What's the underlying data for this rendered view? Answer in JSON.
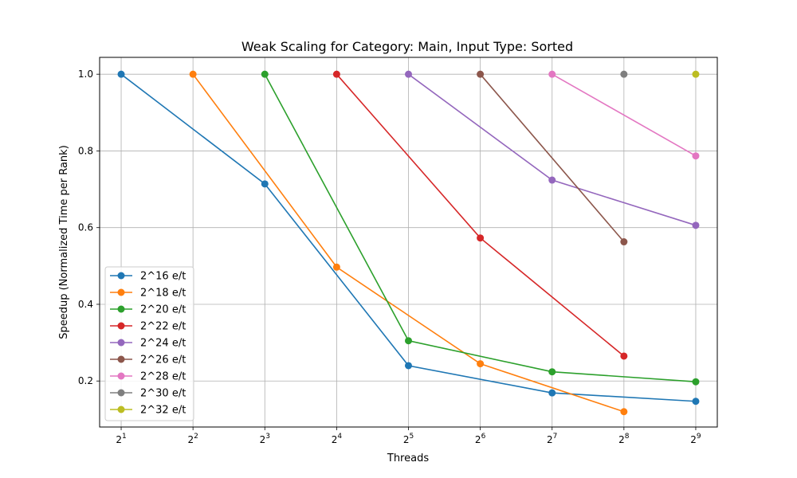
{
  "chart_data": {
    "type": "line",
    "title": "Weak Scaling for Category: Main, Input Type: Sorted",
    "xlabel": "Threads",
    "ylabel": "Speedup (Normalized Time per Rank)",
    "x_scale": "log2",
    "x_ticks": [
      {
        "base": "2",
        "exp": "1",
        "value": 2
      },
      {
        "base": "2",
        "exp": "2",
        "value": 4
      },
      {
        "base": "2",
        "exp": "3",
        "value": 8
      },
      {
        "base": "2",
        "exp": "4",
        "value": 16
      },
      {
        "base": "2",
        "exp": "5",
        "value": 32
      },
      {
        "base": "2",
        "exp": "6",
        "value": 64
      },
      {
        "base": "2",
        "exp": "7",
        "value": 128
      },
      {
        "base": "2",
        "exp": "8",
        "value": 256
      },
      {
        "base": "2",
        "exp": "9",
        "value": 512
      }
    ],
    "y_ticks": [
      "0.2",
      "0.4",
      "0.6",
      "0.8",
      "1.0"
    ],
    "ylim": [
      0.08,
      1.044
    ],
    "grid": true,
    "legend_position": "lower-left",
    "series": [
      {
        "name": "2^16 e/t",
        "color": "#1f77b4",
        "points": [
          [
            2,
            1.0
          ],
          [
            8,
            0.714
          ],
          [
            32,
            0.24
          ],
          [
            128,
            0.169
          ],
          [
            512,
            0.147
          ]
        ]
      },
      {
        "name": "2^18 e/t",
        "color": "#ff7f0e",
        "points": [
          [
            4,
            1.0
          ],
          [
            16,
            0.497
          ],
          [
            64,
            0.245
          ],
          [
            256,
            0.12
          ]
        ]
      },
      {
        "name": "2^20 e/t",
        "color": "#2ca02c",
        "points": [
          [
            8,
            1.0
          ],
          [
            32,
            0.305
          ],
          [
            128,
            0.224
          ],
          [
            512,
            0.198
          ]
        ]
      },
      {
        "name": "2^22 e/t",
        "color": "#d62728",
        "points": [
          [
            16,
            1.0
          ],
          [
            64,
            0.573
          ],
          [
            256,
            0.265
          ]
        ]
      },
      {
        "name": "2^24 e/t",
        "color": "#9467bd",
        "points": [
          [
            32,
            1.0
          ],
          [
            128,
            0.724
          ],
          [
            512,
            0.606
          ]
        ]
      },
      {
        "name": "2^26 e/t",
        "color": "#8c564b",
        "points": [
          [
            64,
            1.0
          ],
          [
            256,
            0.563
          ]
        ]
      },
      {
        "name": "2^28 e/t",
        "color": "#e377c2",
        "points": [
          [
            128,
            1.0
          ],
          [
            512,
            0.787
          ]
        ]
      },
      {
        "name": "2^30 e/t",
        "color": "#7f7f7f",
        "points": [
          [
            256,
            1.0
          ]
        ]
      },
      {
        "name": "2^32 e/t",
        "color": "#bcbd22",
        "points": [
          [
            512,
            1.0
          ]
        ]
      }
    ]
  }
}
